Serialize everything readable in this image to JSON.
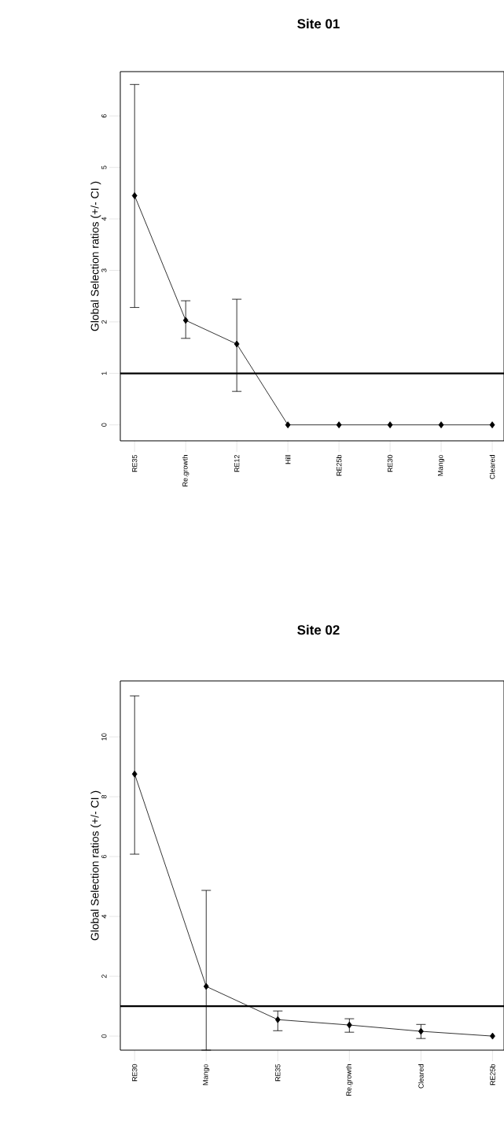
{
  "chart_data": [
    {
      "type": "line",
      "title": "Site 01",
      "ylabel": "Global Selection ratios (+/- CI )",
      "categories": [
        "RE35",
        "Re.growth",
        "RE12",
        "Hill",
        "RE25b",
        "RE30",
        "Mango",
        "Cleared"
      ],
      "values": [
        4.45,
        2.03,
        1.57,
        0,
        0,
        0,
        0,
        0
      ],
      "errors": [
        [
          2.28,
          6.61
        ],
        [
          1.68,
          2.41
        ],
        [
          0.65,
          2.44
        ],
        null,
        null,
        null,
        null,
        null
      ],
      "color": "#000000",
      "marker": "diamond",
      "ylim": [
        -0.31,
        6.86
      ],
      "yticks": [
        0,
        1,
        2,
        3,
        4,
        5,
        6
      ],
      "ref_lines": [
        {
          "axis": "y",
          "value": 1,
          "color": "#000000"
        }
      ]
    },
    {
      "type": "line",
      "title": "Site 02",
      "ylabel": "Global Selection ratios (+/- CI )",
      "categories": [
        "RE30",
        "Mango",
        "RE35",
        "Re.growth",
        "Cleared",
        "RE25b"
      ],
      "values": [
        8.76,
        1.66,
        0.55,
        0.37,
        0.16,
        0
      ],
      "errors": [
        [
          6.08,
          11.37
        ],
        [
          -0.47,
          4.87
        ],
        [
          0.18,
          0.84
        ],
        [
          0.13,
          0.58
        ],
        [
          -0.08,
          0.39
        ],
        null
      ],
      "color": "#000000",
      "marker": "diamond",
      "ylim": [
        -0.47,
        11.87
      ],
      "yticks": [
        0,
        2,
        4,
        6,
        8,
        10
      ],
      "ref_lines": [
        {
          "axis": "y",
          "value": 1,
          "color": "#000000"
        }
      ]
    }
  ]
}
